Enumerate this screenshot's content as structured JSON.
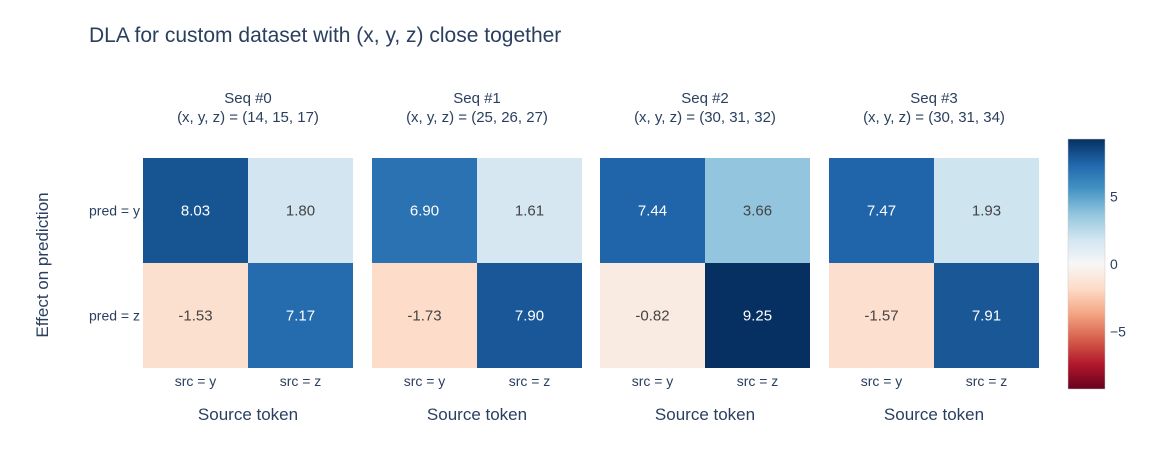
{
  "chart_data": {
    "type": "heatmap",
    "title": "DLA for custom dataset with (x, y, z) close together",
    "ylabel": "Effect on prediction",
    "rows": [
      "pred = y",
      "pred = z"
    ],
    "columns": [
      "src = y",
      "src = z"
    ],
    "panels": [
      {
        "title": "Seq #0",
        "subtitle": "(x, y, z) = (14, 15, 17)",
        "xlabel": "Source token",
        "values": [
          [
            8.03,
            1.8
          ],
          [
            -1.53,
            7.17
          ]
        ]
      },
      {
        "title": "Seq #1",
        "subtitle": "(x, y, z) = (25, 26, 27)",
        "xlabel": "Source token",
        "values": [
          [
            6.9,
            1.61
          ],
          [
            -1.73,
            7.9
          ]
        ]
      },
      {
        "title": "Seq #2",
        "subtitle": "(x, y, z) = (30, 31, 32)",
        "xlabel": "Source token",
        "values": [
          [
            7.44,
            3.66
          ],
          [
            -0.82,
            9.25
          ]
        ]
      },
      {
        "title": "Seq #3",
        "subtitle": "(x, y, z) = (30, 31, 34)",
        "xlabel": "Source token",
        "values": [
          [
            7.47,
            1.93
          ],
          [
            -1.57,
            7.91
          ]
        ]
      }
    ],
    "colorscale": "RdBu",
    "zrange": [
      -9.25,
      9.25
    ],
    "colorbar_ticks": [
      5,
      0,
      -5
    ],
    "colorbar_tick_labels": [
      "5",
      "0",
      "−5"
    ]
  }
}
